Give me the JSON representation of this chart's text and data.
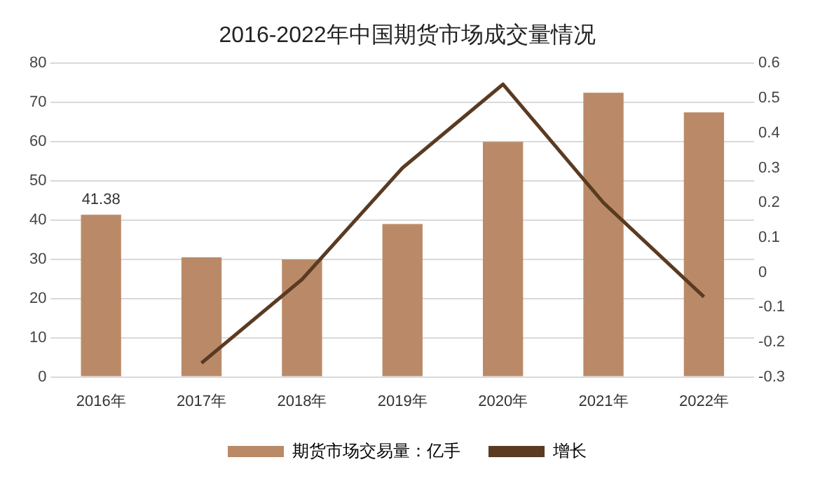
{
  "chart_data": {
    "type": "bar",
    "title": "2016-2022年中国期货市场成交量情况",
    "categories": [
      "2016年",
      "2017年",
      "2018年",
      "2019年",
      "2020年",
      "2021年",
      "2022年"
    ],
    "series": [
      {
        "name": "期货市场交易量：亿手",
        "color": "#ba8a68",
        "values": [
          41.38,
          30.5,
          30,
          39,
          60,
          72.5,
          67.5
        ],
        "value_labels": [
          "41.38",
          null,
          null,
          null,
          null,
          null,
          null
        ]
      },
      {
        "name": "增长",
        "type": "line",
        "axis": "y2",
        "color": "#5a3b22",
        "values": [
          null,
          -0.26,
          -0.02,
          0.3,
          0.54,
          0.2,
          -0.07
        ]
      }
    ],
    "ylim": [
      0,
      80
    ],
    "yticks": [
      0,
      10,
      20,
      30,
      40,
      50,
      60,
      70,
      80
    ],
    "y2lim": [
      -0.3,
      0.6
    ],
    "y2ticks": [
      -0.3,
      -0.2,
      -0.1,
      0,
      0.1,
      0.2,
      0.3,
      0.4,
      0.5,
      0.6
    ],
    "grid": "y",
    "legend": "bottom",
    "marker": "none"
  }
}
